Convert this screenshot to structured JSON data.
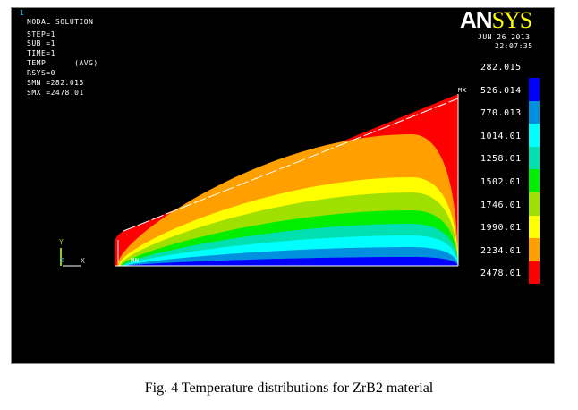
{
  "window_number": "1",
  "info": {
    "title": "NODAL SOLUTION",
    "step": "STEP=1",
    "sub": "SUB =1",
    "time": "TIME=1",
    "temp": "TEMP      (AVG)",
    "rsys": "RSYS=0",
    "smn": "SMN =282.015",
    "smx": "SMX =2478.01"
  },
  "logo": {
    "an": "AN",
    "sys": "SYS"
  },
  "date": "JUN 26 2013",
  "time": "22:07:35",
  "legend": {
    "values": [
      "282.015",
      "526.014",
      "770.013",
      "1014.01",
      "1258.01",
      "1502.01",
      "1746.01",
      "1990.01",
      "2234.01",
      "2478.01"
    ],
    "colors": [
      "#0000ff",
      "#0090e0",
      "#00ffff",
      "#00e0b0",
      "#00ee00",
      "#a0e000",
      "#ffff00",
      "#ffa000",
      "#ff0000"
    ]
  },
  "markers": {
    "mn": "MN",
    "mx": "MX"
  },
  "axes": {
    "x": "X",
    "y": "Y",
    "z": "Z"
  },
  "caption": "Fig. 4 Temperature distributions for ZrB2 material"
}
